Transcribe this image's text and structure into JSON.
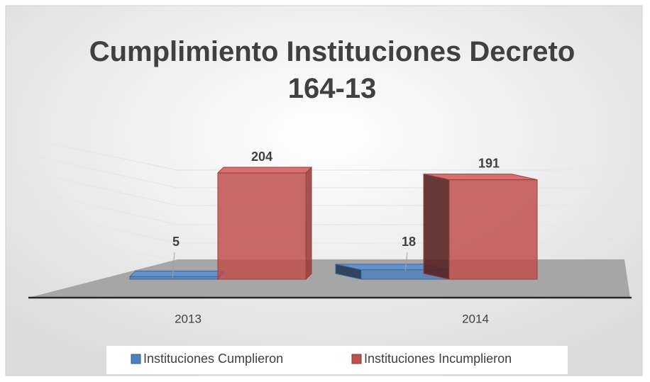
{
  "chart_data": {
    "type": "bar3d",
    "title": "Cumplimiento Instituciones Decreto 164-13",
    "categories": [
      "2013",
      "2014"
    ],
    "series": [
      {
        "name": "Instituciones Cumplieron",
        "color": "#4f81bd",
        "values": [
          5,
          18
        ]
      },
      {
        "name": "Instituciones Incumplieron",
        "color": "#c0504d",
        "values": [
          204,
          191
        ]
      }
    ],
    "legend": "bottom"
  }
}
